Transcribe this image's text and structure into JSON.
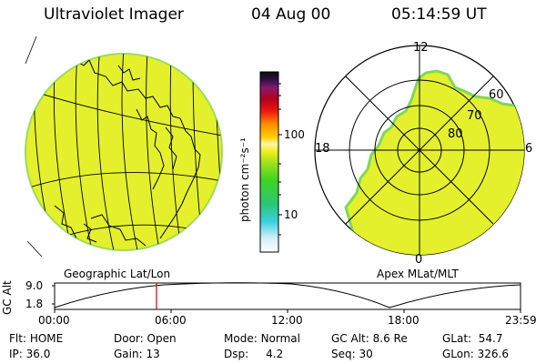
{
  "header": {
    "instrument": "Ultraviolet Imager",
    "date": "04 Aug 00",
    "time": "05:14:59 UT"
  },
  "colorbar": {
    "unit_label": "photon cm⁻²s⁻¹",
    "tick_high": "100",
    "tick_low": "10"
  },
  "geo_panel": {
    "label": "Geographic Lat/Lon"
  },
  "polar_panel": {
    "label": "Apex MLat/MLT",
    "mlt_top": "12",
    "mlt_left": "18",
    "mlt_right": "6",
    "mlt_bottom": "0",
    "lat_60": "60",
    "lat_70": "70",
    "lat_80": "80"
  },
  "altitude_plot": {
    "ylabel": "GC Alt",
    "ytick_top": "9.0",
    "ytick_bottom": "1.8",
    "xticks": [
      "00:00",
      "06:00",
      "12:00",
      "18:00",
      "23:59"
    ],
    "marker_color": "#cc0000"
  },
  "info": {
    "flt_label": "Flt:",
    "flt_value": "HOME",
    "ip_label": "IP:",
    "ip_value": "36.0",
    "door_label": "Door:",
    "door_value": "Open",
    "gain_label": "Gain:",
    "gain_value": "13",
    "mode_label": "Mode:",
    "mode_value": "Normal",
    "dsp_label": "Dsp:",
    "dsp_value": "4.2",
    "gcalt_label": "GC Alt:",
    "gcalt_value": "8.6 Re",
    "seq_label": "Seq:",
    "seq_value": "30",
    "glat_label": "GLat:",
    "glat_value": "54.7",
    "glon_label": "GLon:",
    "glon_value": "326.6"
  },
  "colors": {
    "emission": "#e4f02c",
    "emission_edge": "#7ed858",
    "background": "#ffffff"
  }
}
